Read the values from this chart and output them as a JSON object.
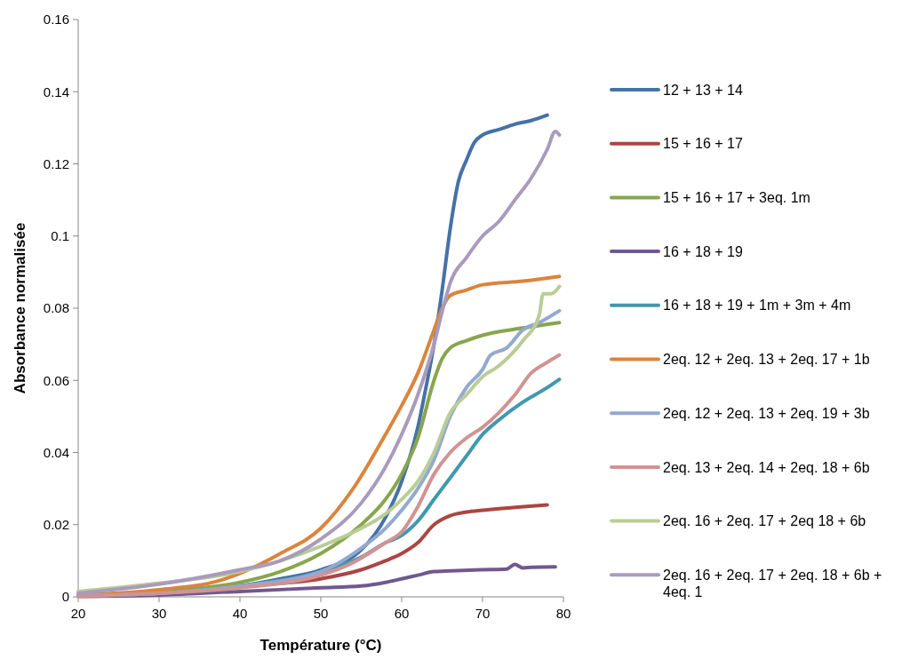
{
  "chart_data": {
    "type": "line",
    "xlabel": "Température (°C)",
    "ylabel": "Absorbance normalisée",
    "xlim": [
      20,
      80
    ],
    "xticks": [
      20,
      30,
      40,
      50,
      60,
      70,
      80
    ],
    "ylim": [
      0,
      0.16
    ],
    "yticks": [
      0,
      0.02,
      0.04,
      0.06,
      0.08,
      0.1,
      0.12,
      0.14,
      0.16
    ],
    "grid": false,
    "legend": "right",
    "marker": "none",
    "line_style": "solid",
    "series": [
      {
        "name": "12 + 13 + 14",
        "color": "#4572a7",
        "x": [
          20,
          30,
          40,
          45,
          50,
          55,
          58,
          60,
          62,
          63,
          64,
          65,
          66,
          67,
          68,
          69,
          70,
          72,
          74,
          76,
          78
        ],
        "values": [
          0.0005,
          0.001,
          0.003,
          0.005,
          0.0075,
          0.013,
          0.022,
          0.032,
          0.047,
          0.058,
          0.07,
          0.085,
          0.102,
          0.115,
          0.121,
          0.126,
          0.128,
          0.1295,
          0.131,
          0.132,
          0.1335
        ]
      },
      {
        "name": "15 + 16 + 17",
        "color": "#aa4643",
        "x": [
          20,
          30,
          40,
          50,
          55,
          58,
          60,
          62,
          64,
          66,
          68,
          70,
          74,
          78
        ],
        "values": [
          0.0003,
          0.0015,
          0.003,
          0.005,
          0.0075,
          0.01,
          0.012,
          0.015,
          0.02,
          0.0225,
          0.0235,
          0.024,
          0.0248,
          0.0255
        ]
      },
      {
        "name": "15 + 16 + 17 + 3eq. 1m",
        "color": "#89a54e",
        "x": [
          20,
          30,
          40,
          45,
          50,
          55,
          58,
          60,
          62,
          64,
          65,
          66,
          68,
          70,
          75,
          79.5
        ],
        "values": [
          0.0005,
          0.0015,
          0.004,
          0.007,
          0.012,
          0.02,
          0.027,
          0.034,
          0.044,
          0.06,
          0.066,
          0.069,
          0.071,
          0.0725,
          0.0745,
          0.076
        ]
      },
      {
        "name": "16 + 18 + 19",
        "color": "#71588f",
        "x": [
          20,
          30,
          40,
          50,
          55,
          58,
          60,
          62,
          64,
          66,
          70,
          73,
          74,
          75,
          76,
          79
        ],
        "values": [
          0.0001,
          0.0005,
          0.0015,
          0.0025,
          0.003,
          0.004,
          0.005,
          0.006,
          0.007,
          0.0072,
          0.0075,
          0.0077,
          0.009,
          0.008,
          0.0082,
          0.0083
        ]
      },
      {
        "name": "16 + 18 + 19 + 1m + 3m + 4m",
        "color": "#4198af",
        "x": [
          20,
          30,
          40,
          50,
          55,
          58,
          60,
          62,
          64,
          66,
          68,
          70,
          72,
          75,
          78,
          79.5
        ],
        "values": [
          0.0003,
          0.001,
          0.003,
          0.007,
          0.011,
          0.015,
          0.017,
          0.021,
          0.027,
          0.033,
          0.039,
          0.045,
          0.049,
          0.054,
          0.058,
          0.0603
        ]
      },
      {
        "name": "2eq. 12 + 2eq. 13 + 2eq. 17 + 1b",
        "color": "#db843d",
        "x": [
          20,
          30,
          37,
          40,
          45,
          50,
          54,
          58,
          60,
          62,
          64,
          65,
          66,
          68,
          70,
          75,
          79.5
        ],
        "values": [
          0.0005,
          0.002,
          0.0042,
          0.0065,
          0.012,
          0.019,
          0.03,
          0.045,
          0.053,
          0.062,
          0.074,
          0.08,
          0.0835,
          0.085,
          0.0865,
          0.0875,
          0.0888
        ]
      },
      {
        "name": "2eq. 12 + 2eq. 13 + 2eq. 19 + 3b",
        "color": "#93a9cf",
        "x": [
          20,
          30,
          40,
          50,
          55,
          58,
          60,
          62,
          64,
          66,
          68,
          70,
          71,
          73,
          75,
          77,
          79.5
        ],
        "values": [
          0.0003,
          0.001,
          0.003,
          0.007,
          0.0135,
          0.019,
          0.024,
          0.03,
          0.038,
          0.05,
          0.058,
          0.063,
          0.067,
          0.069,
          0.074,
          0.076,
          0.0793
        ]
      },
      {
        "name": "2eq. 13 + 2eq. 14 + 2eq. 18 + 6b",
        "color": "#d19392",
        "x": [
          20,
          30,
          40,
          50,
          54,
          58,
          60,
          62,
          64,
          66,
          68,
          70,
          72,
          74,
          76,
          78,
          79.5
        ],
        "values": [
          0.0002,
          0.001,
          0.0025,
          0.006,
          0.0095,
          0.015,
          0.018,
          0.025,
          0.034,
          0.04,
          0.044,
          0.047,
          0.051,
          0.056,
          0.062,
          0.065,
          0.067
        ]
      },
      {
        "name": "2eq. 16 + 2eq. 17 + 2eq 18 + 6b",
        "color": "#b9cd96",
        "x": [
          20,
          30,
          40,
          45,
          50,
          55,
          58,
          60,
          62,
          64,
          66,
          68,
          70,
          72,
          75,
          77,
          77.5,
          78.5,
          79.5
        ],
        "values": [
          0.0015,
          0.0038,
          0.007,
          0.01,
          0.014,
          0.019,
          0.023,
          0.027,
          0.032,
          0.04,
          0.051,
          0.056,
          0.061,
          0.064,
          0.071,
          0.078,
          0.084,
          0.084,
          0.086
        ]
      },
      {
        "name": "2eq. 16 + 2eq. 17 + 2eq. 18 + 6b + 4eq. 1",
        "color": "#a99bbd",
        "x": [
          20,
          30,
          40,
          45,
          50,
          55,
          58,
          60,
          62,
          64,
          65,
          66,
          68,
          70,
          72,
          74,
          76,
          78,
          79,
          79.5
        ],
        "values": [
          0.001,
          0.0035,
          0.0075,
          0.01,
          0.016,
          0.026,
          0.036,
          0.045,
          0.056,
          0.07,
          0.079,
          0.087,
          0.094,
          0.1,
          0.104,
          0.11,
          0.116,
          0.124,
          0.129,
          0.128
        ]
      }
    ]
  }
}
